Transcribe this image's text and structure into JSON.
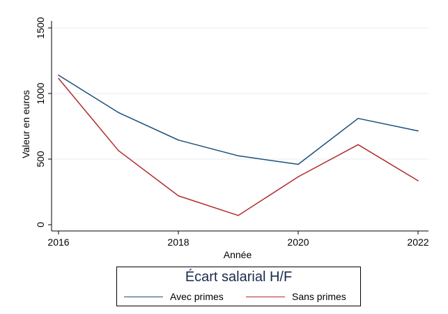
{
  "chart_data": {
    "type": "line",
    "title": "",
    "xlabel": "Année",
    "ylabel": "Valeur en euros",
    "x": [
      2016,
      2017,
      2018,
      2019,
      2020,
      2021,
      2022
    ],
    "x_ticks": [
      "2016",
      "2018",
      "2020",
      "2022"
    ],
    "y_ticks": [
      "0",
      "500",
      "1000",
      "1500"
    ],
    "xlim": [
      2016,
      2022
    ],
    "ylim": [
      0,
      1500
    ],
    "grid": true,
    "legend_position": "bottom",
    "legend_title": "Écart salarial H/F",
    "series": [
      {
        "name": "Avec primes",
        "color": "#1a4f7a",
        "values": [
          1140,
          855,
          645,
          525,
          460,
          810,
          715
        ]
      },
      {
        "name": "Sans primes",
        "color": "#b22a2e",
        "values": [
          1115,
          565,
          220,
          70,
          365,
          610,
          335
        ]
      }
    ]
  }
}
